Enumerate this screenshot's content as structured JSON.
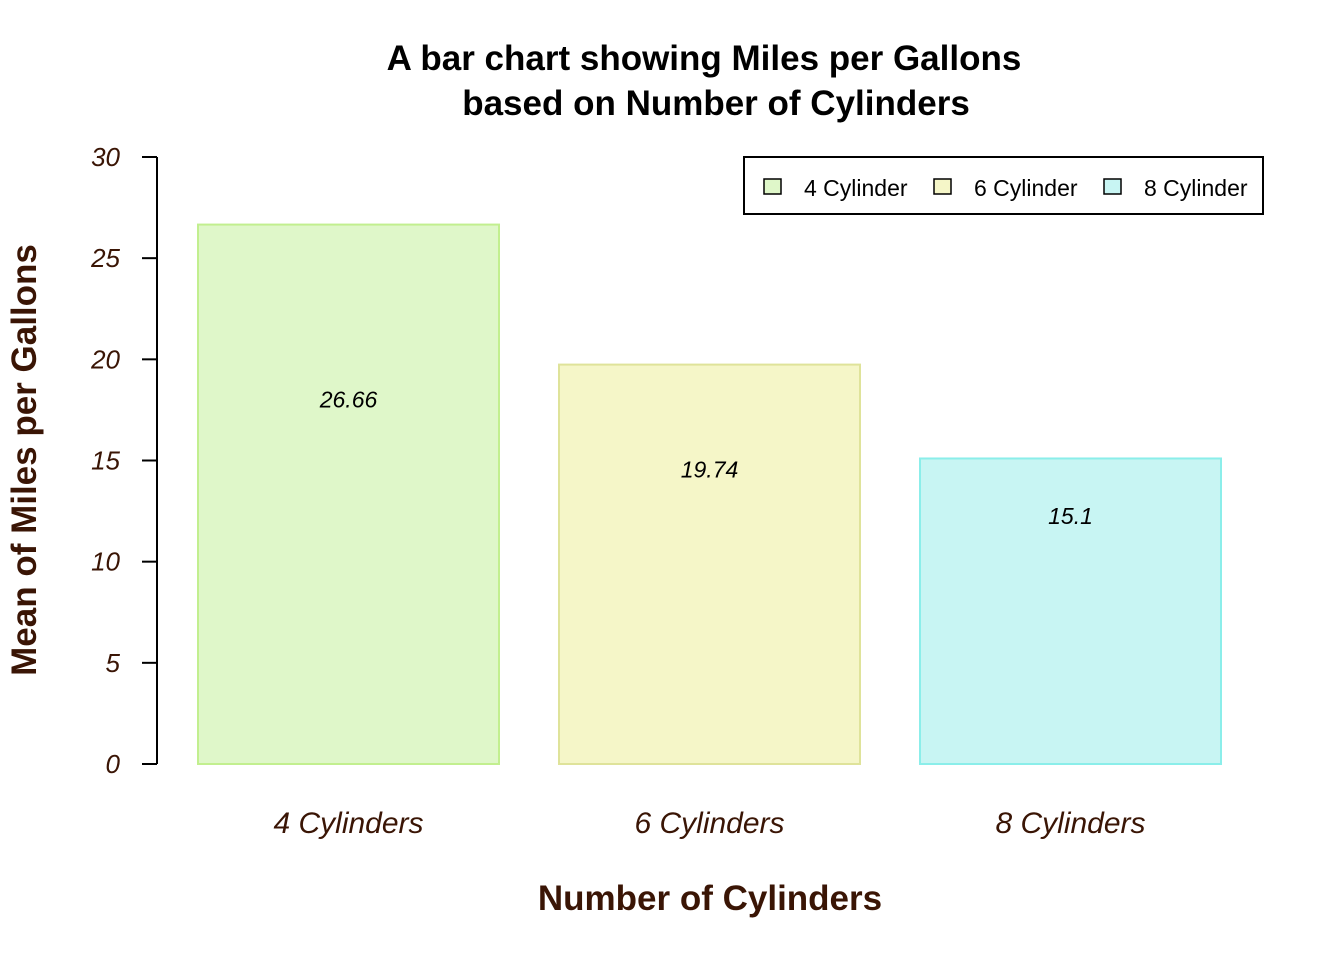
{
  "chart_data": {
    "type": "bar",
    "title_lines": [
      "A bar chart showing Miles per Gallons",
      "based on Number of Cylinders"
    ],
    "xlabel": "Number of Cylinders",
    "ylabel": "Mean of Miles per Gallons",
    "categories": [
      "4 Cylinders",
      "6 Cylinders",
      "8 Cylinders"
    ],
    "values": [
      26.66,
      19.74,
      15.1
    ],
    "data_labels": [
      "26.66",
      "19.74",
      "15.1"
    ],
    "colors": [
      "#dff7c9",
      "#f5f6c8",
      "#c8f5f3"
    ],
    "border_colors": [
      "#c2ef8f",
      "#dfe39a",
      "#8beeea"
    ],
    "ylim": [
      0,
      30
    ],
    "yticks": [
      0,
      5,
      10,
      15,
      20,
      25,
      30
    ],
    "grid": false,
    "legend": {
      "placement": "top-right",
      "entries": [
        "4 Cylinder",
        "6 Cylinder",
        "8 Cylinder"
      ]
    }
  }
}
